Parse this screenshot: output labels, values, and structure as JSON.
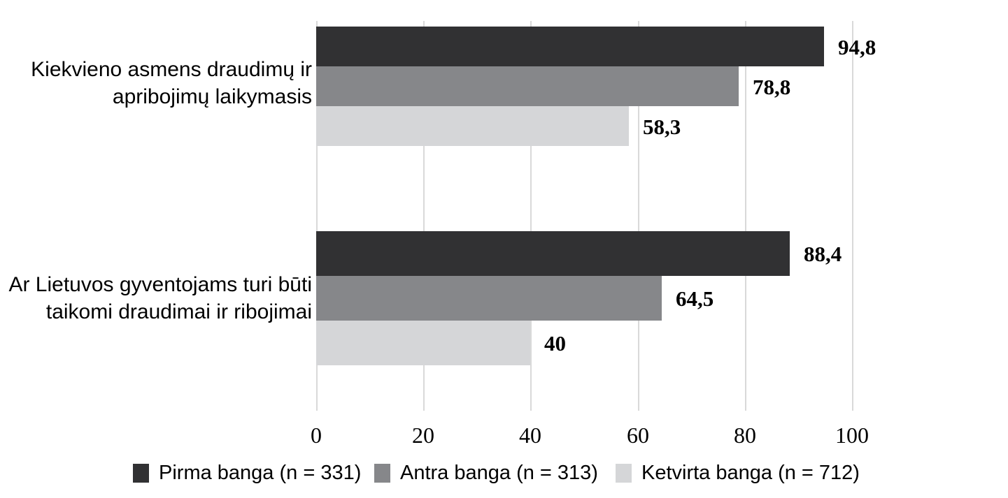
{
  "chart_data": {
    "type": "bar",
    "orientation": "horizontal",
    "title": "",
    "xlabel": "",
    "ylabel": "",
    "categories": [
      "Kiekvieno asmens draudimų ir apribojimų laikymasis",
      "Ar Lietuvos gyventojams turi būti taikomi draudimai ir ribojimai"
    ],
    "category_lines": [
      [
        "Kiekvieno asmens draudimų ir",
        "apribojimų laikymasis"
      ],
      [
        "Ar Lietuvos gyventojams turi būti",
        "taikomi draudimai ir ribojimai"
      ]
    ],
    "series": [
      {
        "name": "Pirma banga (n = 331)",
        "color": "#313133",
        "values": [
          94.8,
          88.4
        ],
        "value_labels": [
          "94,8",
          "88,4"
        ]
      },
      {
        "name": "Antra banga (n = 313)",
        "color": "#86878a",
        "values": [
          78.8,
          64.5
        ],
        "value_labels": [
          "78,8",
          "64,5"
        ]
      },
      {
        "name": "Ketvirta banga (n = 712)",
        "color": "#d5d6d8",
        "values": [
          58.3,
          40
        ],
        "value_labels": [
          "58,3",
          "40"
        ]
      }
    ],
    "x_axis": {
      "min": 0,
      "max": 100,
      "tick_values": [
        0,
        20,
        40,
        60,
        80,
        100
      ],
      "tick_labels": [
        "0",
        "20",
        "40",
        "60",
        "80",
        "100"
      ]
    },
    "grid": "vertical",
    "gridline_color": "#d9d9d9",
    "legend_position": "bottom",
    "background_color": "#ffffff",
    "text_color": "#000000"
  }
}
